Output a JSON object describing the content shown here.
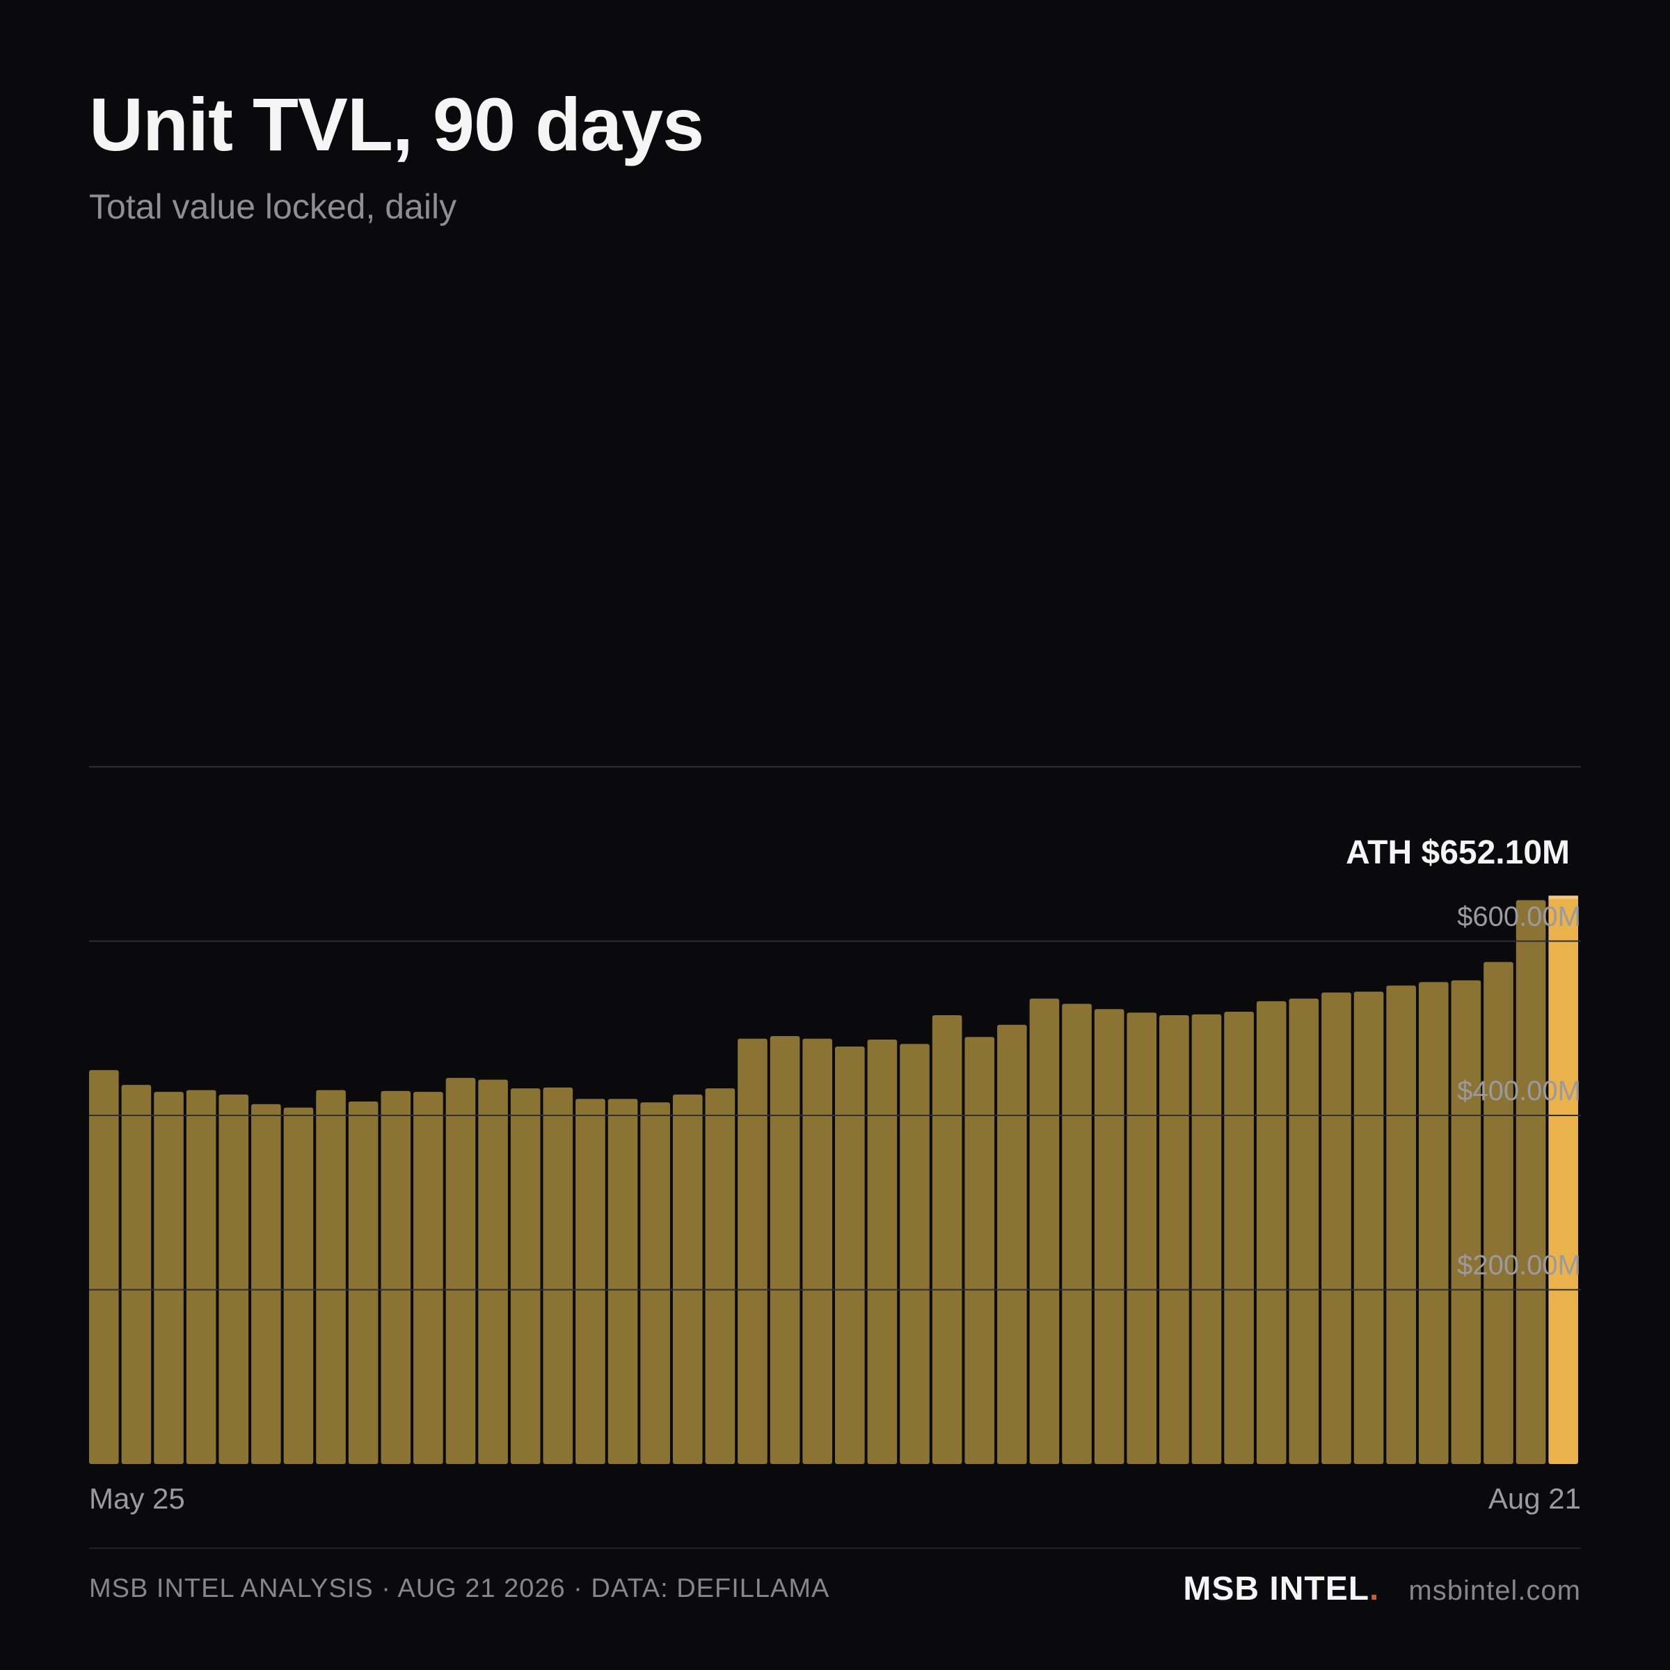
{
  "header": {
    "title": "Unit TVL, 90 days",
    "subtitle": "Total value locked, daily"
  },
  "footer": {
    "source": "MSB INTEL ANALYSIS · AUG 21 2026 · DATA: DEFILLAMA",
    "brand": "MSB INTEL",
    "brand_dot": ".",
    "url": "msbintel.com"
  },
  "colors": {
    "bar": "#8b7334",
    "highlight": "#e9b24c",
    "background": "#0a0a0c",
    "grid": "#2e2e33"
  },
  "chart_data": {
    "type": "bar",
    "title": "Unit TVL, 90 days",
    "subtitle": "Total value locked, daily",
    "xlabel": "",
    "ylabel": "",
    "x_start_label": "May 25",
    "x_end_label": "Aug 21",
    "ylim": [
      0,
      800
    ],
    "y_unit": "$M",
    "yticks": [
      200,
      400,
      600,
      800
    ],
    "ytick_labels": [
      "$200.00M",
      "$400.00M",
      "$600.00M",
      ""
    ],
    "grid": true,
    "annotation": {
      "text": "ATH $652.10M",
      "value": 652.1
    },
    "values": [
      452,
      435,
      427,
      429,
      424,
      413,
      409,
      429,
      416,
      428,
      427,
      443,
      441,
      431,
      432,
      419,
      419,
      415,
      424,
      431,
      488,
      491,
      488,
      479,
      487,
      482,
      515,
      490,
      504,
      534,
      528,
      522,
      518,
      515,
      516,
      519,
      531,
      534,
      541,
      542,
      549,
      553,
      555,
      576,
      647,
      652.1
    ]
  }
}
